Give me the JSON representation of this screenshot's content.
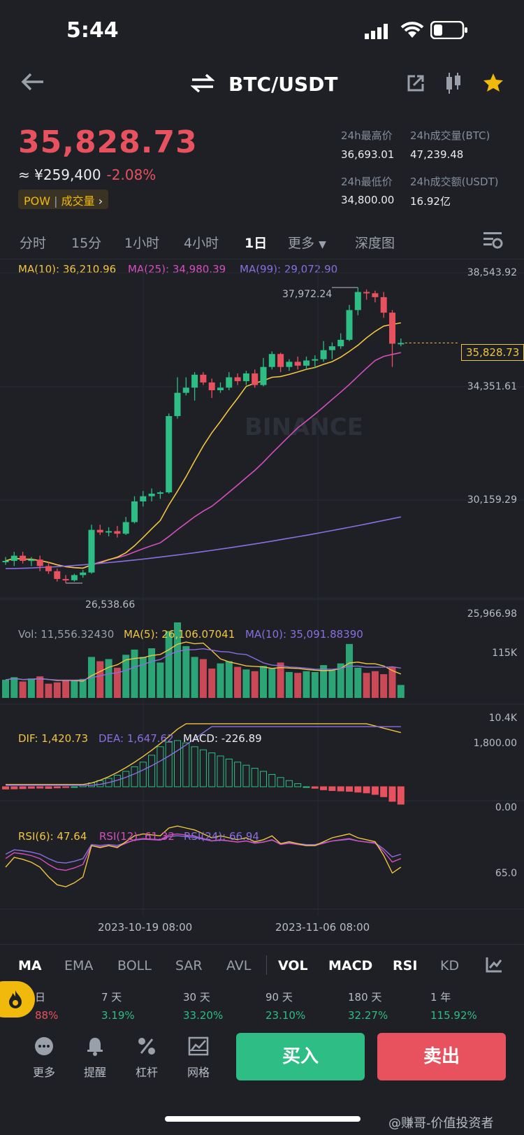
{
  "status_bar": {
    "time": "5:44"
  },
  "header": {
    "pair": "BTC/USDT"
  },
  "ticker": {
    "last_price": "35,828.73",
    "cny_price": "≈ ¥259,400",
    "change_pct": "-2.08%",
    "tag_pow": "POW",
    "tag_volume": "成交量",
    "high_label": "24h最高价",
    "high_value": "36,693.01",
    "vol_btc_label": "24h成交量(BTC)",
    "vol_btc_value": "47,239.48",
    "low_label": "24h最低价",
    "low_value": "34,800.00",
    "vol_usdt_label": "24h成交额(USDT)",
    "vol_usdt_value": "16.92亿"
  },
  "timeframes": [
    "分时",
    "15分",
    "1小时",
    "4小时",
    "1日",
    "更多",
    "深度图"
  ],
  "active_timeframe": "1日",
  "main_chart": {
    "ma10_label": "MA(10): 36,210.96",
    "ma25_label": "MA(25): 34,980.39",
    "ma99_label": "MA(99): 29,072.90",
    "axis_top": "38,543.92",
    "axis_mid1": "34,351.61",
    "axis_mid2": "30,159.29",
    "axis_bottom": "25,966.98",
    "high_marker": "37,972.24",
    "low_marker": "26,538.66",
    "current_price_tag": "35,828.73",
    "watermark": "BINANCE"
  },
  "vol_chart": {
    "vol_label": "Vol: 11,556.32430",
    "ma5_label": "MA(5): 26,106.07041",
    "ma10_label": "MA(10): 35,091.88390",
    "axis_top": "115K",
    "axis_bottom": "10.4K"
  },
  "macd_chart": {
    "dif_label": "DIF: 1,420.73",
    "dea_label": "DEA: 1,647.62",
    "macd_label": "MACD: -226.89",
    "axis_top": "1,800.00",
    "axis_bottom": "0.00"
  },
  "rsi_chart": {
    "rsi6_label": "RSI(6): 47.64",
    "rsi12_label": "RSI(12): 61.32",
    "rsi24_label": "RSI(24): 66.94",
    "axis_mid": "65.0",
    "date1": "2023-10-19 08:00",
    "date2": "2023-11-06 08:00"
  },
  "indicator_tabs": [
    "MA",
    "EMA",
    "BOLL",
    "SAR",
    "AVL",
    "VOL",
    "MACD",
    "RSI",
    "KD"
  ],
  "performance": [
    {
      "label": "日",
      "value": "88%"
    },
    {
      "label": "7 天",
      "value": "3.19%"
    },
    {
      "label": "30 天",
      "value": "33.20%"
    },
    {
      "label": "90 天",
      "value": "23.10%"
    },
    {
      "label": "180 天",
      "value": "32.27%"
    },
    {
      "label": "1 年",
      "value": "115.92%"
    }
  ],
  "bottom_nav": {
    "more": "更多",
    "alert": "提醒",
    "leverage": "杠杆",
    "grid": "网格",
    "buy": "买入",
    "sell": "卖出"
  },
  "watermark_footer": "@赚哥-价值投资者",
  "colors": {
    "up": "#2ebd85",
    "down": "#e8525f",
    "ma10": "#f0c541",
    "ma25": "#d54fbe",
    "ma99": "#8a6fe0",
    "bg": "#1e2026"
  },
  "chart_data": {
    "type": "candlestick",
    "price_range": [
      25966.98,
      38543.92
    ],
    "candles": [
      [
        27400,
        27550,
        27250,
        27400
      ],
      [
        27400,
        27750,
        27200,
        27600
      ],
      [
        27600,
        27750,
        27300,
        27400
      ],
      [
        27400,
        27550,
        27200,
        27450
      ],
      [
        27450,
        27600,
        27000,
        27200
      ],
      [
        27200,
        27350,
        26900,
        27000
      ],
      [
        27000,
        27100,
        26600,
        26700
      ],
      [
        26700,
        26850,
        26540,
        26650
      ],
      [
        26650,
        26900,
        26600,
        26850
      ],
      [
        26850,
        27050,
        26750,
        26950
      ],
      [
        26950,
        28800,
        26900,
        28600
      ],
      [
        28600,
        28800,
        28400,
        28500
      ],
      [
        28500,
        28700,
        28350,
        28550
      ],
      [
        28550,
        28750,
        28300,
        28450
      ],
      [
        28450,
        29100,
        28400,
        28900
      ],
      [
        28900,
        29900,
        28850,
        29700
      ],
      [
        29700,
        30100,
        29500,
        29900
      ],
      [
        29900,
        30200,
        29700,
        30000
      ],
      [
        30000,
        30100,
        29800,
        30050
      ],
      [
        30050,
        33100,
        30000,
        33000
      ],
      [
        33000,
        34500,
        32900,
        33900
      ],
      [
        33900,
        34500,
        33800,
        34100
      ],
      [
        34100,
        34700,
        33600,
        34600
      ],
      [
        34600,
        34700,
        34200,
        34300
      ],
      [
        34300,
        34450,
        33700,
        34000
      ],
      [
        34000,
        34300,
        33900,
        34100
      ],
      [
        34100,
        34700,
        34000,
        34500
      ],
      [
        34500,
        34650,
        34200,
        34350
      ],
      [
        34350,
        34750,
        34200,
        34650
      ],
      [
        34650,
        34800,
        34100,
        34200
      ],
      [
        34200,
        35250,
        34150,
        34900
      ],
      [
        34900,
        35500,
        34800,
        35400
      ],
      [
        35400,
        35450,
        34700,
        34900
      ],
      [
        34900,
        35200,
        34750,
        35100
      ],
      [
        35100,
        35300,
        34800,
        34950
      ],
      [
        34950,
        35300,
        34800,
        35150
      ],
      [
        35150,
        35350,
        34850,
        35200
      ],
      [
        35200,
        35900,
        35100,
        35550
      ],
      [
        35550,
        35850,
        35200,
        35700
      ],
      [
        35700,
        36200,
        35600,
        35950
      ],
      [
        35950,
        37300,
        35900,
        37100
      ],
      [
        37100,
        37972,
        36900,
        37800
      ],
      [
        37800,
        37900,
        37500,
        37750
      ],
      [
        37750,
        37850,
        37400,
        37600
      ],
      [
        37600,
        37800,
        36800,
        37000
      ],
      [
        37000,
        37100,
        34900,
        35800
      ],
      [
        35800,
        36000,
        35700,
        35829
      ]
    ],
    "volume": [
      42,
      48,
      38,
      45,
      50,
      33,
      36,
      40,
      42,
      44,
      95,
      85,
      90,
      70,
      100,
      112,
      95,
      115,
      82,
      155,
      175,
      120,
      95,
      90,
      68,
      80,
      85,
      72,
      66,
      62,
      74,
      68,
      82,
      60,
      58,
      62,
      60,
      76,
      64,
      80,
      125,
      70,
      58,
      62,
      55,
      72,
      30
    ],
    "macd_hist": [
      -30,
      -28,
      -25,
      -20,
      -18,
      -22,
      -15,
      -10,
      0,
      20,
      50,
      80,
      110,
      150,
      200,
      260,
      320,
      410,
      520,
      580,
      600,
      570,
      520,
      480,
      440,
      400,
      360,
      320,
      280,
      240,
      200,
      160,
      120,
      80,
      40,
      0,
      -20,
      -40,
      -50,
      -55,
      -60,
      -70,
      -80,
      -100,
      -130,
      -190,
      -227
    ]
  }
}
